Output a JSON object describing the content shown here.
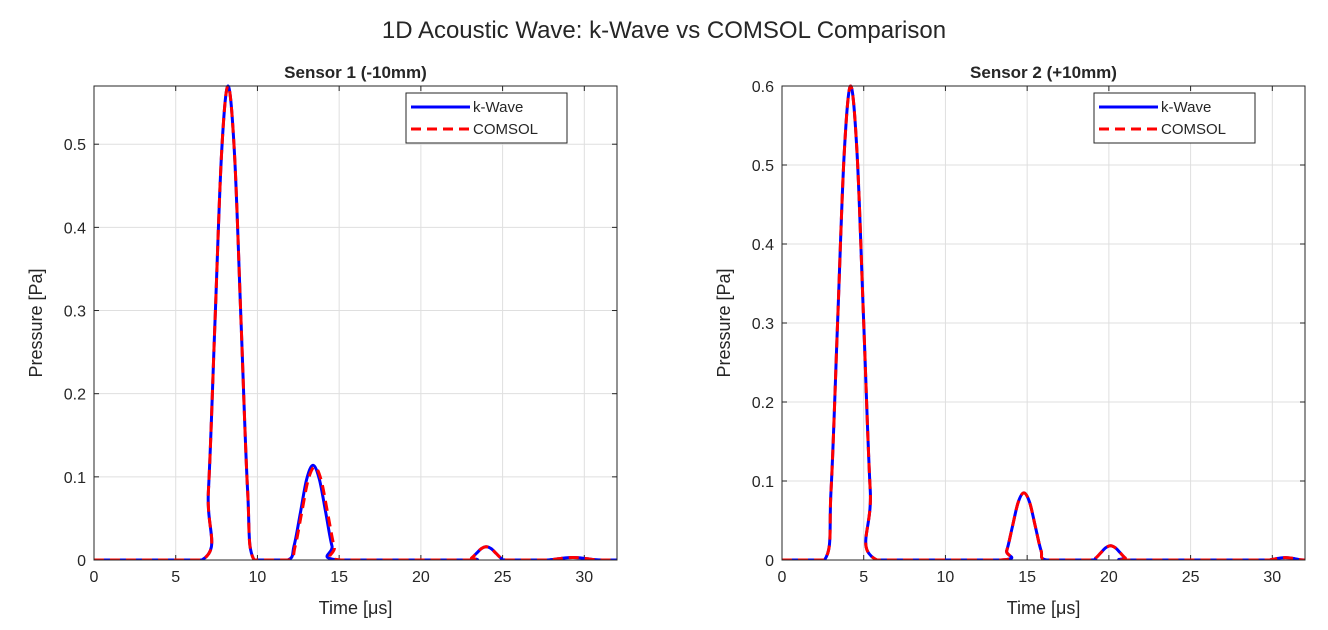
{
  "figure_title": "1D Acoustic Wave: k-Wave vs COMSOL Comparison",
  "colors": {
    "k-Wave": "#0000ff",
    "COMSOL": "#ff0000",
    "grid": "#dfdfdf",
    "axis": "#262626"
  },
  "chart_data": [
    {
      "type": "line",
      "title": "Sensor 1 (-10mm)",
      "xlabel": "Time  [μs]",
      "ylabel": "Pressure [Pa]",
      "xlim": [
        0,
        32
      ],
      "ylim": [
        0,
        0.57
      ],
      "xticks": [
        0,
        5,
        10,
        15,
        20,
        25,
        30
      ],
      "xtick_labels": [
        "0",
        "5",
        "10",
        "15",
        "20",
        "25",
        "30"
      ],
      "yticks": [
        0,
        0.1,
        0.2,
        0.3,
        0.4,
        0.5
      ],
      "ytick_labels": [
        "0",
        "0.1",
        "0.2",
        "0.3",
        "0.4",
        "0.5"
      ],
      "grid": true,
      "legend": "top-right",
      "series": [
        {
          "name": "k-Wave",
          "style": "solid",
          "x": [
            0,
            6.6,
            7.0,
            7.4,
            7.8,
            8.2,
            8.6,
            9.0,
            9.4,
            9.8,
            11.85,
            12.24,
            12.63,
            13.01,
            13.4,
            13.79,
            14.18,
            14.56,
            14.95,
            22.8,
            23.1,
            23.4,
            23.7,
            24.0,
            24.3,
            24.6,
            24.9,
            25.2,
            27.5,
            27.95,
            28.4,
            28.85,
            29.3,
            29.75,
            30.2,
            30.65,
            31.1,
            32
          ],
          "y": [
            0,
            0,
            0.083,
            0.285,
            0.487,
            0.57,
            0.487,
            0.285,
            0.083,
            0,
            0,
            0.017,
            0.057,
            0.097,
            0.114,
            0.097,
            0.057,
            0.017,
            0,
            0,
            0.0023,
            0.008,
            0.0137,
            0.016,
            0.0137,
            0.008,
            0.0023,
            0,
            0,
            0.0004,
            0.0015,
            0.0026,
            0.003,
            0.0026,
            0.0015,
            0.0004,
            0,
            0
          ]
        },
        {
          "name": "COMSOL",
          "style": "dashed",
          "x": [
            0,
            6.6,
            7.0,
            7.4,
            7.8,
            8.2,
            8.6,
            9.0,
            9.4,
            9.8,
            11.9,
            12.3,
            12.7,
            13.1,
            13.5,
            13.9,
            14.3,
            14.7,
            15.1,
            22.8,
            23.1,
            23.4,
            23.7,
            24.0,
            24.3,
            24.6,
            24.9,
            25.2,
            27.5,
            27.95,
            28.4,
            28.85,
            29.3,
            29.75,
            30.2,
            30.65,
            31.1,
            32
          ],
          "y": [
            0,
            0,
            0.083,
            0.285,
            0.487,
            0.57,
            0.487,
            0.285,
            0.083,
            0,
            0,
            0.016,
            0.056,
            0.096,
            0.112,
            0.096,
            0.056,
            0.016,
            0,
            0,
            0.0023,
            0.008,
            0.0137,
            0.016,
            0.0137,
            0.008,
            0.0023,
            0,
            0,
            0.0004,
            0.0015,
            0.0026,
            0.003,
            0.0026,
            0.0015,
            0.0004,
            0,
            0
          ]
        }
      ]
    },
    {
      "type": "line",
      "title": "Sensor 2 (+10mm)",
      "xlabel": "Time  [μs]",
      "ylabel": "Pressure [Pa]",
      "xlim": [
        0,
        32
      ],
      "ylim": [
        0,
        0.6
      ],
      "xticks": [
        0,
        5,
        10,
        15,
        20,
        25,
        30
      ],
      "xtick_labels": [
        "0",
        "5",
        "10",
        "15",
        "20",
        "25",
        "30"
      ],
      "yticks": [
        0,
        0.1,
        0.2,
        0.3,
        0.4,
        0.5,
        0.6
      ],
      "ytick_labels": [
        "0",
        "0.1",
        "0.2",
        "0.3",
        "0.4",
        "0.5",
        "0.6"
      ],
      "grid": true,
      "legend": "top-right",
      "series": [
        {
          "name": "k-Wave",
          "style": "solid",
          "x": [
            0,
            2.6,
            3.0,
            3.4,
            3.8,
            4.2,
            4.6,
            5.0,
            5.4,
            5.8,
            13.4,
            13.75,
            14.1,
            14.45,
            14.8,
            15.15,
            15.5,
            15.85,
            16.2,
            18.9,
            19.2,
            19.5,
            19.8,
            20.1,
            20.4,
            20.7,
            21.0,
            21.3,
            29.6,
            29.9,
            30.2,
            30.5,
            30.8,
            31.1,
            31.4,
            31.7,
            32.0
          ],
          "y": [
            0,
            0,
            0.088,
            0.3,
            0.512,
            0.6,
            0.512,
            0.3,
            0.088,
            0,
            0,
            0.012,
            0.0425,
            0.073,
            0.085,
            0.073,
            0.0425,
            0.012,
            0,
            0,
            0.0026,
            0.009,
            0.0154,
            0.018,
            0.0154,
            0.009,
            0.0026,
            0,
            0,
            0.0004,
            0.0015,
            0.0026,
            0.003,
            0.0026,
            0.0015,
            0.0004,
            0
          ]
        },
        {
          "name": "COMSOL",
          "style": "dashed",
          "x": [
            0,
            2.6,
            3.0,
            3.4,
            3.8,
            4.2,
            4.6,
            5.0,
            5.4,
            5.8,
            13.4,
            13.75,
            14.1,
            14.45,
            14.8,
            15.15,
            15.5,
            15.85,
            16.2,
            18.9,
            19.2,
            19.5,
            19.8,
            20.1,
            20.4,
            20.7,
            21.0,
            21.3,
            29.6,
            29.9,
            30.2,
            30.5,
            30.8,
            31.1,
            31.4,
            31.7,
            32.0
          ],
          "y": [
            0,
            0,
            0.088,
            0.3,
            0.512,
            0.6,
            0.512,
            0.3,
            0.088,
            0,
            0,
            0.012,
            0.0425,
            0.073,
            0.085,
            0.073,
            0.0425,
            0.012,
            0,
            0,
            0.0026,
            0.009,
            0.0154,
            0.018,
            0.0154,
            0.009,
            0.0026,
            0,
            0,
            0.0004,
            0.0015,
            0.0026,
            0.003,
            0.0026,
            0.0015,
            0.0004,
            0
          ]
        }
      ]
    }
  ]
}
